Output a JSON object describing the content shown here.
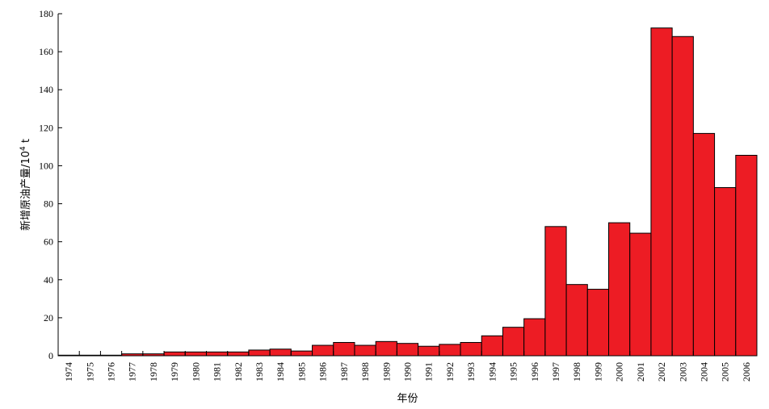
{
  "chart_data": {
    "type": "bar",
    "title": "",
    "xlabel": "年份",
    "ylabel_main": "新增原油产量/10",
    "ylabel_sup": "4",
    "ylabel_unit": " t",
    "ylim": [
      0,
      180
    ],
    "yticks": [
      0,
      20,
      40,
      60,
      80,
      100,
      120,
      140,
      160,
      180
    ],
    "categories": [
      "1974",
      "1975",
      "1976",
      "1977",
      "1978",
      "1979",
      "1980",
      "1981",
      "1982",
      "1983",
      "1984",
      "1985",
      "1986",
      "1987",
      "1988",
      "1989",
      "1990",
      "1991",
      "1992",
      "1993",
      "1994",
      "1995",
      "1996",
      "1997",
      "1998",
      "1999",
      "2000",
      "2001",
      "2002",
      "2003",
      "2004",
      "2005",
      "2006"
    ],
    "values": [
      0.3,
      0.3,
      0.3,
      1,
      1,
      2,
      2,
      2,
      2,
      3,
      3.5,
      2.5,
      5.5,
      7,
      5.5,
      7.5,
      6.5,
      5,
      6,
      7,
      10.5,
      15,
      19.5,
      68,
      37.5,
      35,
      70,
      64.5,
      172.5,
      168,
      117,
      88.5,
      105.5
    ],
    "grid": false,
    "legend": "none",
    "colors": {
      "bar": "#ed1c24",
      "edge": "#000000"
    }
  }
}
